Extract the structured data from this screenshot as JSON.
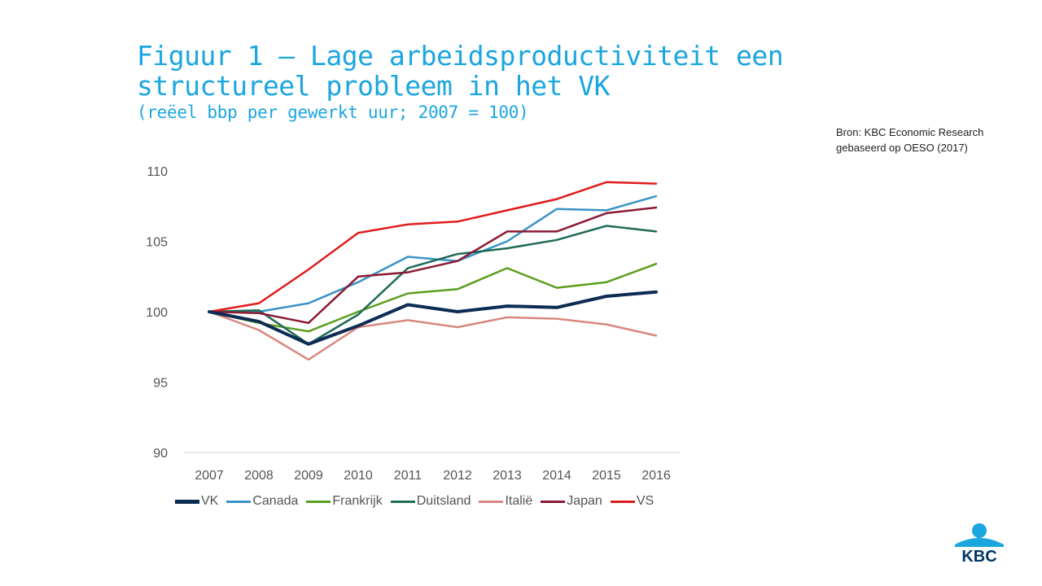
{
  "header": {
    "title_line1": "Figuur 1 – Lage arbeidsproductiviteit een",
    "title_line2": "structureel probleem in het VK",
    "subtitle": "(reëel bbp per gewerkt uur; 2007 = 100)"
  },
  "source": {
    "line1": "Bron: KBC Economic Research",
    "line2": "gebaseerd op OESO (2017)"
  },
  "logo": {
    "text": "KBC",
    "color": "#003665",
    "accent": "#1ba6e0"
  },
  "chart_data": {
    "type": "line",
    "title": "Figuur 1 – Lage arbeidsproductiviteit een structureel probleem in het VK",
    "subtitle": "(reëel bbp per gewerkt uur; 2007 = 100)",
    "x": [
      "2007",
      "2008",
      "2009",
      "2010",
      "2011",
      "2012",
      "2013",
      "2014",
      "2015",
      "2016"
    ],
    "ylim": [
      90,
      110
    ],
    "yticks": [
      "90",
      "95",
      "100",
      "105",
      "110"
    ],
    "grid": false,
    "legend_position": "bottom",
    "series": [
      {
        "name": "VK",
        "color": "#0c2c54",
        "width": 4,
        "values": [
          100,
          99.3,
          97.7,
          99,
          100.5,
          100,
          100.4,
          100.3,
          101.1,
          101.4
        ]
      },
      {
        "name": "Canada",
        "color": "#3a93c6",
        "width": 2.5,
        "values": [
          100,
          100,
          100.6,
          102.1,
          103.9,
          103.6,
          105.0,
          107.3,
          107.2,
          108.2
        ]
      },
      {
        "name": "Frankrijk",
        "color": "#5a9e1e",
        "width": 2.5,
        "values": [
          100,
          99.2,
          98.6,
          100.0,
          101.3,
          101.6,
          103.1,
          101.7,
          102.1,
          103.4
        ]
      },
      {
        "name": "Duitsland",
        "color": "#1f6b58",
        "width": 2.5,
        "values": [
          100,
          100.1,
          97.7,
          99.8,
          103.1,
          104.1,
          104.5,
          105.1,
          106.1,
          105.7
        ]
      },
      {
        "name": "Italië",
        "color": "#d98880",
        "width": 2.5,
        "values": [
          100,
          98.7,
          96.6,
          98.9,
          99.4,
          98.9,
          99.6,
          99.5,
          99.1,
          98.3
        ]
      },
      {
        "name": "Japan",
        "color": "#8b1a33",
        "width": 2.5,
        "values": [
          100,
          99.9,
          99.2,
          102.5,
          102.8,
          103.6,
          105.7,
          105.7,
          107.0,
          107.4
        ]
      },
      {
        "name": "VS",
        "color": "#e01b1b",
        "width": 2.5,
        "values": [
          100,
          100.6,
          103.0,
          105.6,
          106.2,
          106.4,
          107.2,
          108.0,
          109.2,
          109.1
        ]
      }
    ]
  }
}
